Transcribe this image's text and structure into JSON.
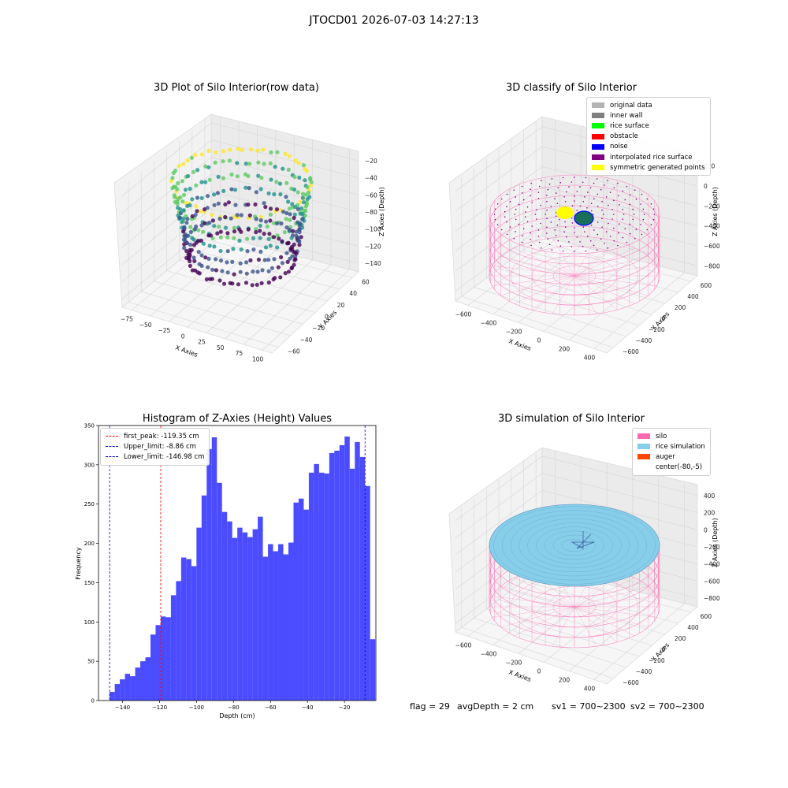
{
  "figure": {
    "suptitle": "JTOCD01 2026-07-03 14:27:13"
  },
  "panels": {
    "raw": {
      "title": "3D Plot of Silo Interior(row data)",
      "xlabel": "X Axies",
      "ylabel": "Y Axies",
      "zlabel": "Z Axies (Depth)",
      "xticks": [
        "−75",
        "−50",
        "−25",
        "0",
        "25",
        "50",
        "75",
        "100"
      ],
      "yticks": [
        "60",
        "40",
        "20",
        "0",
        "−20",
        "−40",
        "−60"
      ],
      "zticks": [
        "−20",
        "−40",
        "−60",
        "−80",
        "−100",
        "−120",
        "−140"
      ]
    },
    "classify": {
      "title": "3D classify of Silo Interior",
      "xlabel": "X Axies",
      "ylabel": "Y Axies",
      "zlabel": "Z Axies (Depth)",
      "xticks": [
        "−600",
        "−400",
        "−200",
        "0",
        "200",
        "400"
      ],
      "yticks": [
        "600",
        "400",
        "200",
        "0",
        "−200",
        "−400",
        "−600"
      ],
      "zticks": [
        "200",
        "0",
        "−200",
        "−400",
        "−600",
        "−800"
      ],
      "legend": [
        {
          "label": "original data",
          "color": "#b3b3b3"
        },
        {
          "label": "inner wall",
          "color": "#808080"
        },
        {
          "label": "rice surface",
          "color": "#00ff00"
        },
        {
          "label": "obstacle",
          "color": "#ff0000"
        },
        {
          "label": "noise",
          "color": "#0000ff"
        },
        {
          "label": "interpolated rice surface",
          "color": "#800080"
        },
        {
          "label": "symmetric generated points",
          "color": "#ffff00"
        }
      ]
    },
    "simulation": {
      "title": "3D simulation of Silo Interior",
      "xlabel": "X Axies",
      "ylabel": "Y Axies",
      "zlabel": "Z Axies (Depth)",
      "xticks": [
        "−600",
        "−400",
        "−200",
        "0",
        "200",
        "400"
      ],
      "yticks": [
        "600",
        "400",
        "200",
        "0",
        "−200",
        "−400",
        "−600"
      ],
      "zticks": [
        "400",
        "200",
        "0",
        "−200",
        "−400",
        "−600",
        "−800"
      ],
      "legend": [
        {
          "label": "silo",
          "color": "#ff69b4"
        },
        {
          "label": "rice simulation",
          "color": "#87ceeb"
        },
        {
          "label": "auger",
          "color": "#ff4500"
        },
        {
          "label": "center(-80,-5)",
          "color": "#ffffff"
        }
      ]
    }
  },
  "chart_data": {
    "type": "bar",
    "title": "Histogram of Z-Axies (Height) Values",
    "xlabel": "Depth (cm)",
    "ylabel": "Frequency",
    "xlim": [
      -153,
      -3
    ],
    "ylim": [
      0,
      350
    ],
    "xticks": [
      -140,
      -120,
      -100,
      -80,
      -60,
      -40,
      -20
    ],
    "xtick_labels": [
      "−140",
      "−120",
      "−100",
      "−80",
      "−60",
      "−40",
      "−20"
    ],
    "yticks": [
      0,
      50,
      100,
      150,
      200,
      250,
      300,
      350
    ],
    "yticks_labels": [
      "0",
      "50",
      "100",
      "150",
      "200",
      "250",
      "300",
      "350"
    ],
    "bin_start": -146.98,
    "bin_width": 2.7622,
    "values": [
      11,
      21,
      27,
      34,
      31,
      42,
      50,
      55,
      84,
      96,
      107,
      106,
      134,
      152,
      182,
      180,
      171,
      220,
      261,
      320,
      335,
      277,
      240,
      228,
      207,
      220,
      214,
      208,
      218,
      234,
      183,
      199,
      190,
      199,
      186,
      201,
      252,
      257,
      243,
      290,
      301,
      290,
      289,
      315,
      318,
      325,
      336,
      295,
      329,
      310,
      273,
      78
    ],
    "bar_color": "#4b4bff",
    "vlines": [
      {
        "label": "first_peak: -119.35 cm",
        "x": -119.35,
        "color": "#ff0000"
      },
      {
        "label": "Upper_limit: -8.86 cm",
        "x": -8.86,
        "color": "#0000cc"
      },
      {
        "label": "Lower_limit: -146.98 cm",
        "x": -146.98,
        "color": "#0000cc"
      }
    ],
    "legend_position": "top-left"
  },
  "status": {
    "flag": "flag = 29",
    "avg": "avgDepth = 2 cm",
    "sv1": "sv1 = 700~2300",
    "sv2": "sv2 = 700~2300"
  }
}
